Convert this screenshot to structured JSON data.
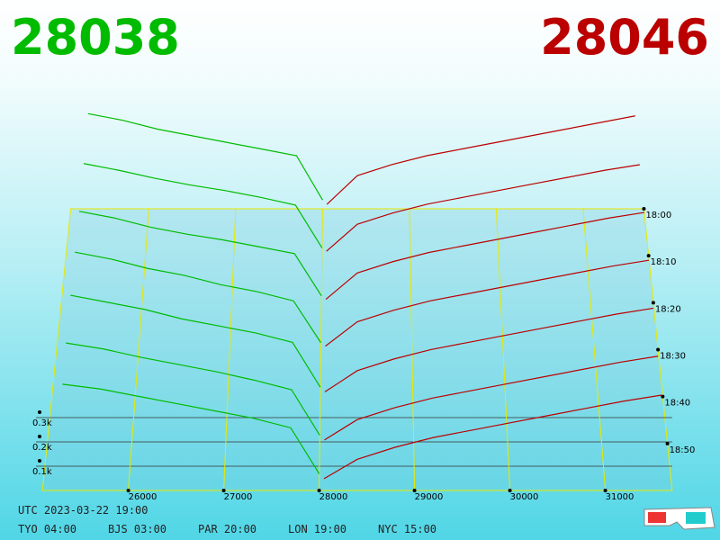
{
  "chart_data": {
    "type": "depth3d",
    "bid_price": "28038",
    "ask_price": "28046",
    "bid_color": "#00bb00",
    "ask_color": "#bb0000",
    "xlim": [
      25100,
      31700
    ],
    "xticks": [
      26000,
      27000,
      28000,
      29000,
      30000,
      31000
    ],
    "depth_ticks": [
      {
        "value": 100,
        "label": "0.1k"
      },
      {
        "value": 200,
        "label": "0.2k"
      },
      {
        "value": 300,
        "label": "0.3k"
      }
    ],
    "tlim": [
      0,
      60
    ],
    "time_ticks": [
      {
        "value": 0,
        "label": "18:00"
      },
      {
        "value": 10,
        "label": "18:10"
      },
      {
        "value": 20,
        "label": "18:20"
      },
      {
        "value": 30,
        "label": "18:30"
      },
      {
        "value": 40,
        "label": "18:40"
      },
      {
        "value": 50,
        "label": "18:50"
      }
    ],
    "bid_x": [
      25300,
      25700,
      26100,
      26500,
      26900,
      27300,
      27700,
      28000
    ],
    "ask_x": [
      28050,
      28400,
      28800,
      29200,
      29600,
      30000,
      30400,
      30800,
      31200,
      31600
    ],
    "bids": [
      {
        "time": 0,
        "values": [
          430,
          400,
          360,
          330,
          300,
          270,
          240,
          40
        ]
      },
      {
        "time": 10,
        "values": [
          410,
          380,
          345,
          315,
          290,
          260,
          225,
          35
        ]
      },
      {
        "time": 20,
        "values": [
          400,
          370,
          330,
          300,
          275,
          245,
          215,
          30
        ]
      },
      {
        "time": 30,
        "values": [
          420,
          390,
          350,
          320,
          280,
          250,
          210,
          30
        ]
      },
      {
        "time": 40,
        "values": [
          430,
          400,
          370,
          330,
          300,
          270,
          230,
          40
        ]
      },
      {
        "time": 50,
        "values": [
          420,
          395,
          360,
          330,
          300,
          265,
          225,
          35
        ]
      },
      {
        "time": 58,
        "values": [
          400,
          380,
          350,
          320,
          290,
          260,
          220,
          30
        ]
      }
    ],
    "asks": [
      {
        "time": 0,
        "values": [
          20,
          150,
          200,
          240,
          270,
          300,
          330,
          360,
          390,
          420
        ]
      },
      {
        "time": 10,
        "values": [
          20,
          140,
          190,
          230,
          260,
          290,
          320,
          350,
          380,
          405
        ]
      },
      {
        "time": 20,
        "values": [
          15,
          130,
          180,
          220,
          250,
          280,
          310,
          340,
          370,
          395
        ]
      },
      {
        "time": 30,
        "values": [
          15,
          120,
          170,
          210,
          240,
          270,
          300,
          330,
          360,
          385
        ]
      },
      {
        "time": 40,
        "values": [
          20,
          110,
          160,
          200,
          230,
          260,
          290,
          320,
          350,
          375
        ]
      },
      {
        "time": 50,
        "values": [
          15,
          100,
          150,
          190,
          220,
          250,
          280,
          310,
          340,
          365
        ]
      },
      {
        "time": 58,
        "values": [
          10,
          90,
          140,
          180,
          210,
          240,
          270,
          300,
          330,
          355
        ]
      }
    ]
  },
  "footer": {
    "utc": "UTC 2023-03-22 19:00",
    "cities": [
      "TYO 04:00",
      "BJS 03:00",
      "PAR 20:00",
      "LON 19:00",
      "NYC 15:00"
    ]
  }
}
